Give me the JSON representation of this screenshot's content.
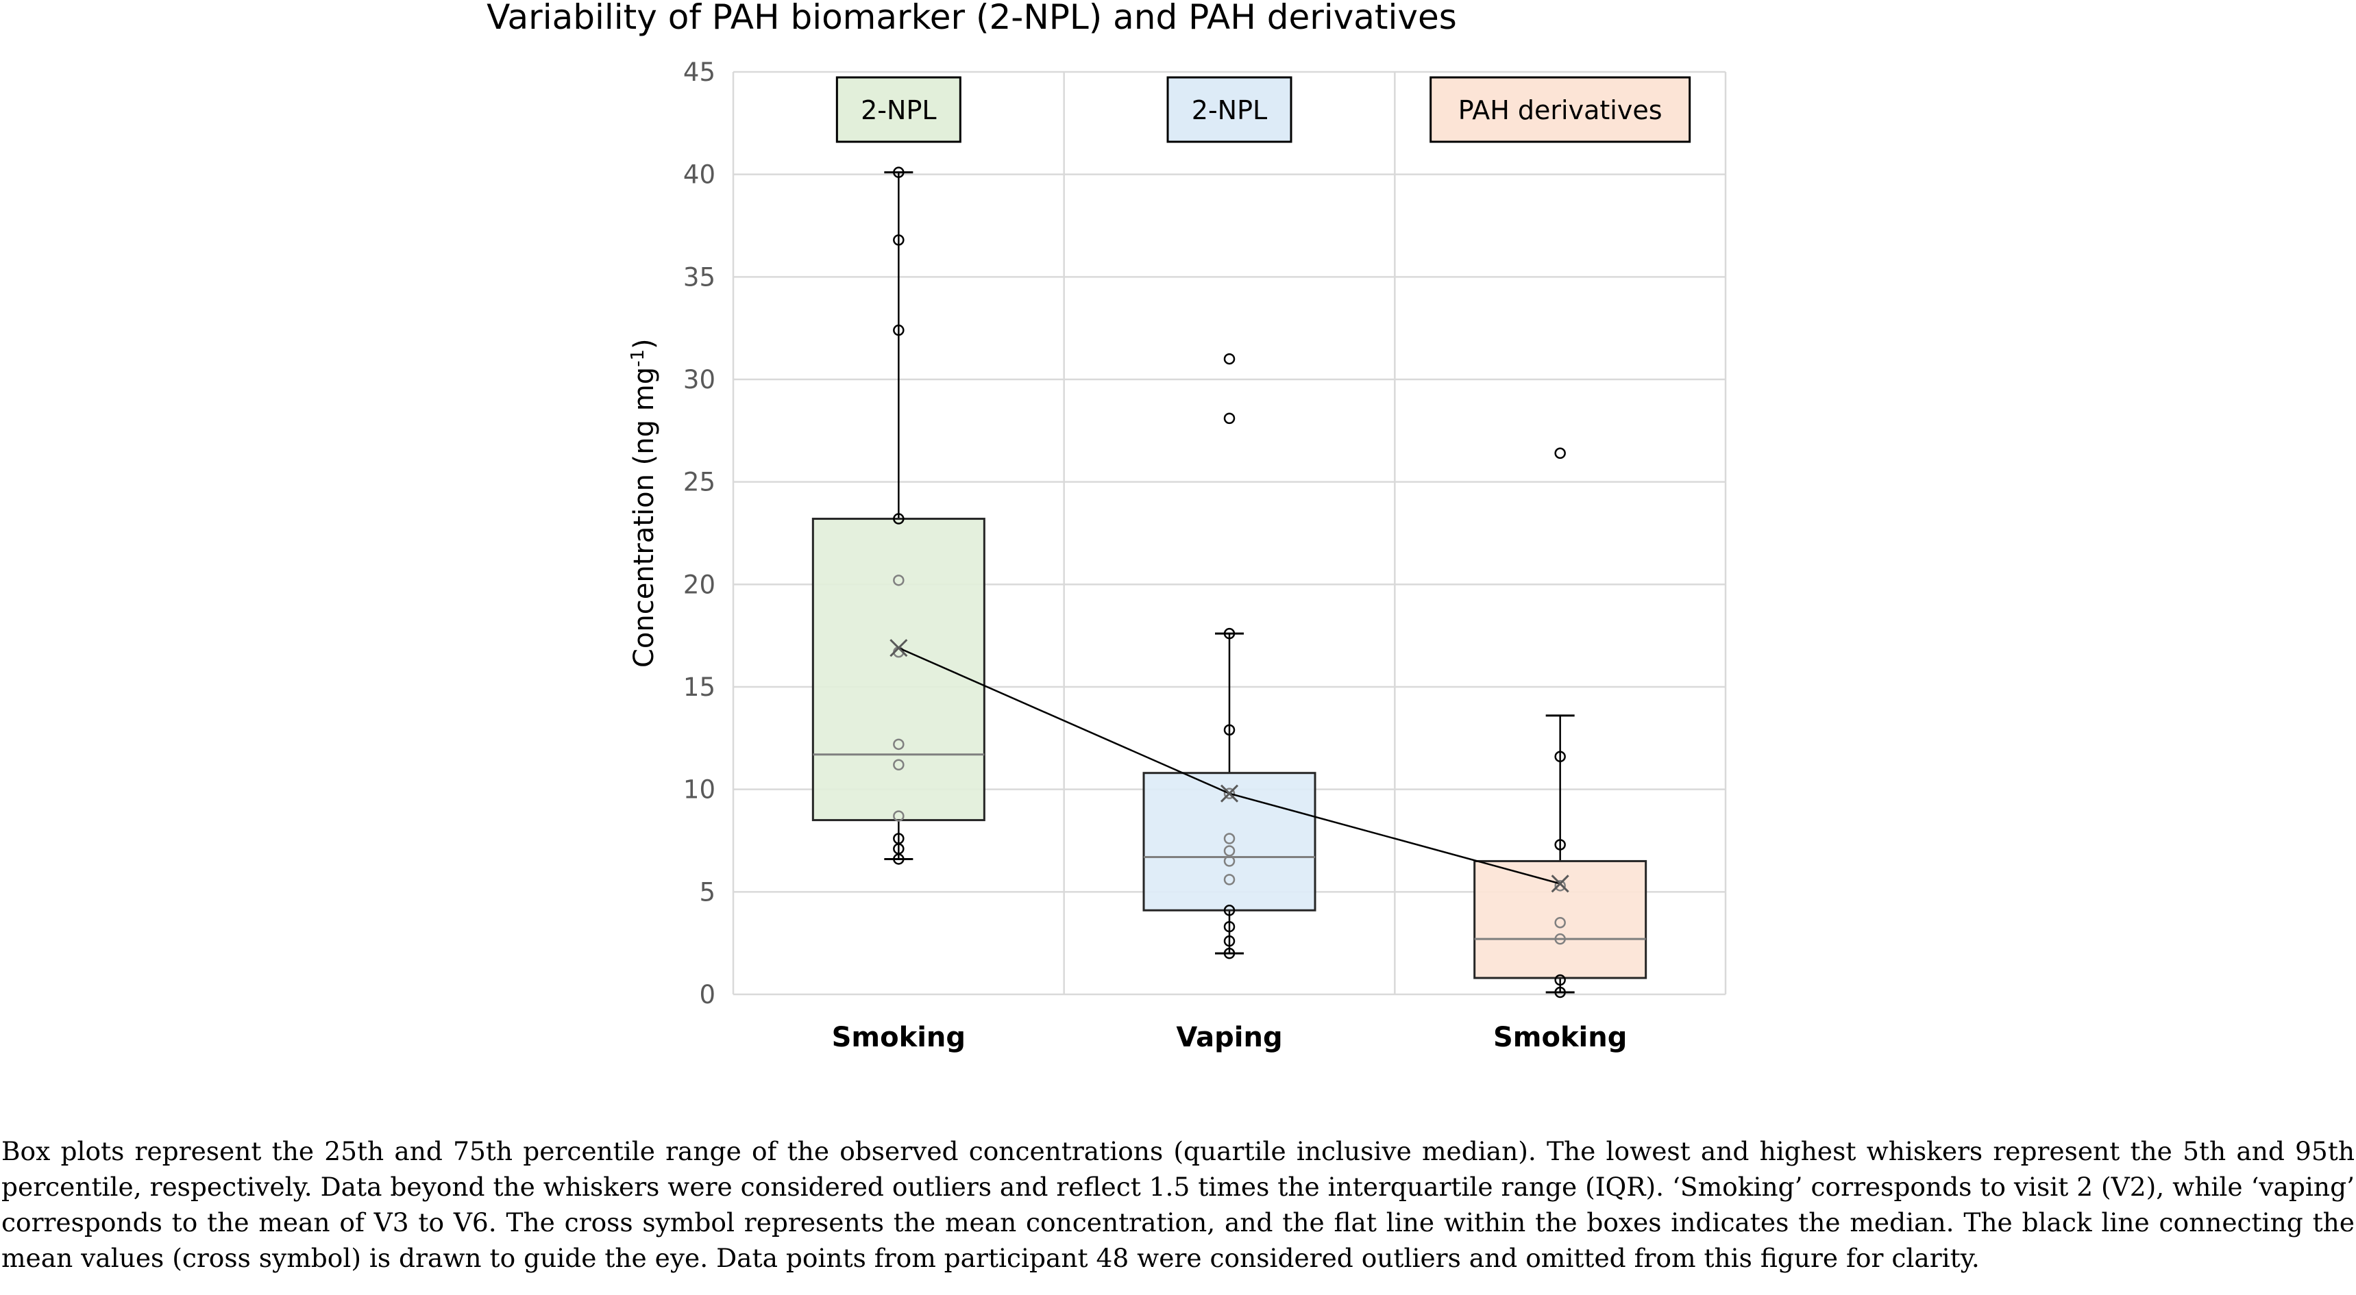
{
  "chart_data": {
    "type": "box",
    "title": "Variability of PAH biomarker (2-NPL) and PAH derivatives",
    "ylabel": "Concentration (ng mg",
    "ylabel_sup": "-1",
    "ylabel_close": ")",
    "ylim": [
      0,
      45
    ],
    "yticks": [
      0,
      5,
      10,
      15,
      20,
      25,
      30,
      35,
      40,
      45
    ],
    "grid": true,
    "groups": [
      {
        "header": "2-NPL",
        "category": "Smoking",
        "color": "#e2efda",
        "whisker_low": 6.6,
        "q1": 8.5,
        "median": 11.7,
        "q3": 23.2,
        "whisker_high": 40.1,
        "mean": 16.9,
        "points": [
          6.6,
          7.1,
          7.6,
          8.7,
          11.2,
          12.2,
          16.7,
          20.2,
          23.2,
          32.4,
          36.8,
          40.1
        ]
      },
      {
        "header": "2-NPL",
        "category": "Vaping",
        "color": "#ddebf7",
        "whisker_low": 2.0,
        "q1": 4.1,
        "median": 6.7,
        "q3": 10.8,
        "whisker_high": 17.6,
        "mean": 9.8,
        "points": [
          2.0,
          2.6,
          3.3,
          4.1,
          5.6,
          6.5,
          7.0,
          7.6,
          9.8,
          12.9,
          17.6,
          28.1,
          31.0
        ]
      },
      {
        "header": "PAH derivatives",
        "category": "Smoking",
        "color": "#fce4d6",
        "whisker_low": 0.1,
        "q1": 0.8,
        "median": 2.7,
        "q3": 6.5,
        "whisker_high": 13.6,
        "mean": 5.4,
        "points": [
          0.1,
          0.7,
          2.7,
          3.5,
          5.3,
          7.3,
          11.6,
          26.4
        ]
      }
    ]
  },
  "caption": "Box plots represent the 25th and 75th percentile range of the observed concentrations (quartile inclusive median). The lowest and highest whiskers represent the 5th and 95th percentile, respectively. Data beyond the whiskers were considered outliers and reflect 1.5 times the interquartile range (IQR). ‘Smoking’ corresponds to visit 2 (V2), while ‘vaping’ corresponds to the mean of V3 to V6. The cross symbol represents the mean concentration, and the flat line within the boxes indicates the median. The black line connecting the mean values (cross symbol) is drawn to guide the eye. Data points from participant 48 were considered outliers and omitted from this figure for clarity."
}
